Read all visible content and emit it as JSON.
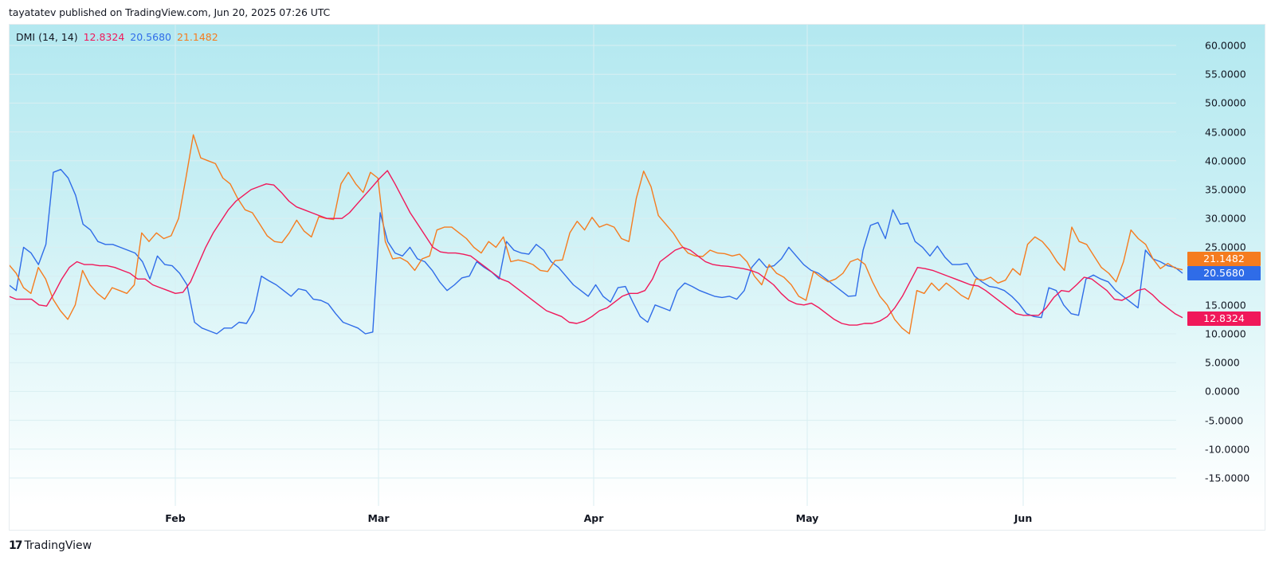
{
  "header": {
    "published_text": "tayatatev published on TradingView.com, Jun 20, 2025 07:26 UTC"
  },
  "indicator": {
    "name": "DMI (14, 14)",
    "adx_value": "12.8324",
    "plus_di_value": "20.5680",
    "minus_di_value": "21.1482"
  },
  "colors": {
    "adx": "#f0185a",
    "plus_di": "#2f6ce8",
    "minus_di": "#f57c1f",
    "background_top": "#b3e8f0",
    "background_bottom": "#ffffff",
    "grid": "#d9eef2"
  },
  "yaxis": {
    "ticks": [
      "60.0000",
      "55.0000",
      "50.0000",
      "45.0000",
      "40.0000",
      "35.0000",
      "30.0000",
      "25.0000",
      "15.0000",
      "10.0000",
      "5.0000",
      "0.0000",
      "-5.0000",
      "-10.0000",
      "-15.0000"
    ]
  },
  "badges": {
    "minus_di": "21.1482",
    "plus_di": "20.5680",
    "adx": "12.8324"
  },
  "xaxis": {
    "ticks": [
      "Feb",
      "Mar",
      "Apr",
      "May",
      "Jun"
    ]
  },
  "footer": {
    "brand": "TradingView",
    "logo_glyph": "17"
  },
  "chart_data": {
    "type": "line",
    "title": "DMI (14, 14)",
    "xlabel": "",
    "ylabel": "",
    "ylim": [
      -20,
      62
    ],
    "x_ticks": [
      "Feb",
      "Mar",
      "Apr",
      "May",
      "Jun"
    ],
    "y_ticks": [
      60,
      55,
      50,
      45,
      40,
      35,
      30,
      25,
      20,
      15,
      10,
      5,
      0,
      -5,
      -10,
      -15
    ],
    "grid": true,
    "legend_position": "top-left",
    "x_range": "approx. Jan 9 2025 – Jun 19 2025 (daily)",
    "series": [
      {
        "name": "+DI",
        "color": "#2f6ce8",
        "last_value": 20.568,
        "values": [
          18.5,
          17.5,
          25,
          24,
          22,
          25.5,
          38,
          38.5,
          37,
          34,
          29,
          28,
          26,
          25.5,
          25.5,
          25,
          24.5,
          24,
          22.5,
          19.5,
          23.5,
          22,
          21.8,
          20.5,
          18.5,
          12,
          11,
          10.5,
          10,
          11,
          11,
          12,
          11.8,
          14,
          20,
          19.2,
          18.5,
          17.5,
          16.5,
          17.8,
          17.5,
          16,
          15.8,
          15.2,
          13.5,
          12,
          11.5,
          11,
          10,
          10.3,
          31,
          26,
          24,
          23.5,
          25,
          23,
          22.5,
          21,
          19,
          17.5,
          18.5,
          19.7,
          20,
          22.5,
          21.5,
          20.7,
          19.5,
          26,
          24.5,
          24,
          23.8,
          25.5,
          24.5,
          22.5,
          21.5,
          20,
          18.5,
          17.5,
          16.5,
          18.5,
          16.5,
          15.5,
          18,
          18.2,
          15.5,
          13,
          12,
          15,
          14.5,
          14,
          17.5,
          18.8,
          18.2,
          17.5,
          17,
          16.5,
          16.3,
          16.5,
          16,
          17.5,
          21.5,
          23,
          21.5,
          21.8,
          23,
          25,
          23.5,
          22,
          21,
          20.5,
          19.5,
          18.5,
          17.5,
          16.5,
          16.6,
          24.5,
          28.8,
          29.3,
          26.5,
          31.5,
          29,
          29.2,
          26,
          25,
          23.5,
          25.2,
          23.3,
          22,
          22,
          22.2,
          20,
          19,
          18.2,
          18,
          17.5,
          16.5,
          15.2,
          13.5,
          13,
          12.8,
          18,
          17.5,
          15,
          13.5,
          13.2,
          19.5,
          20.2,
          19.5,
          19,
          17.5,
          16.5,
          15.5,
          14.5,
          24.5,
          23,
          22.5,
          21.8,
          21.5,
          20.5
        ]
      },
      {
        "name": "-DI",
        "color": "#f57c1f",
        "last_value": 21.1482,
        "values": [
          22,
          20.5,
          18,
          17,
          21.5,
          19.5,
          16,
          14,
          12.5,
          15,
          21,
          18.5,
          17,
          16,
          18,
          17.5,
          17,
          18.5,
          27.5,
          26,
          27.5,
          26.5,
          27,
          30,
          37,
          44.5,
          40.5,
          40,
          39.5,
          37,
          36,
          33.5,
          31.5,
          31,
          29,
          27,
          26,
          25.8,
          27.5,
          29.7,
          27.8,
          26.8,
          30.3,
          30,
          29.8,
          36,
          38,
          36,
          34.5,
          38,
          37,
          26,
          23,
          23.2,
          22.5,
          21,
          23,
          23.5,
          28,
          28.5,
          28.5,
          27.5,
          26.5,
          25,
          24,
          26,
          25,
          26.8,
          22.5,
          22.8,
          22.5,
          22,
          21,
          20.8,
          22.7,
          22.8,
          27.5,
          29.5,
          28,
          30.2,
          28.5,
          29,
          28.5,
          26.5,
          26,
          33.5,
          38.2,
          35.5,
          30.5,
          29,
          27.5,
          25.5,
          24,
          23.5,
          23.4,
          24.5,
          24,
          23.9,
          23.5,
          23.8,
          22.5,
          20,
          18.5,
          22,
          20.5,
          19.8,
          18.5,
          16.5,
          15.8,
          20.8,
          19.8,
          19,
          19.5,
          20.5,
          22.5,
          23,
          22,
          19,
          16.5,
          15,
          12.5,
          11,
          10,
          17.5,
          17,
          18.8,
          17.5,
          18.8,
          17.8,
          16.7,
          16,
          19.5,
          19.3,
          19.8,
          18.8,
          19.3,
          21.3,
          20.2,
          25.5,
          26.8,
          26,
          24.5,
          22.5,
          21,
          28.5,
          26,
          25.5,
          23.5,
          21.5,
          20.5,
          19,
          22.5,
          28,
          26.5,
          25.5,
          23,
          21.3,
          22.2,
          21.4,
          21.1
        ]
      },
      {
        "name": "ADX",
        "color": "#f0185a",
        "last_value": 12.8324,
        "values": [
          16.5,
          16,
          16,
          16,
          15,
          14.8,
          17,
          19.5,
          21.5,
          22.5,
          22,
          22,
          21.8,
          21.8,
          21.5,
          21,
          20.5,
          19.5,
          19.5,
          18.5,
          18,
          17.5,
          17,
          17.2,
          19,
          22,
          25,
          27.5,
          29.5,
          31.5,
          33,
          34,
          35,
          35.5,
          36,
          35.8,
          34.5,
          33,
          32,
          31.5,
          31,
          30.5,
          30,
          30,
          30,
          31,
          32.5,
          34,
          35.5,
          37,
          38.3,
          36,
          33.5,
          31,
          29,
          27,
          25,
          24.2,
          24,
          24,
          23.8,
          23.5,
          22.5,
          21.5,
          20.5,
          19.5,
          19,
          18,
          17,
          16,
          15,
          14,
          13.5,
          13,
          12,
          11.8,
          12.2,
          13,
          14,
          14.5,
          15.5,
          16.5,
          17,
          17,
          17.5,
          19.5,
          22.5,
          23.5,
          24.5,
          25,
          24.5,
          23.5,
          22.5,
          22,
          21.8,
          21.7,
          21.5,
          21.3,
          21,
          20.5,
          19.5,
          18.5,
          17,
          15.8,
          15.2,
          15,
          15.3,
          14.5,
          13.5,
          12.5,
          11.8,
          11.5,
          11.5,
          11.8,
          11.8,
          12.2,
          13,
          14.5,
          16.5,
          19,
          21.5,
          21.3,
          21,
          20.5,
          20,
          19.5,
          19,
          18.5,
          18.3,
          17.5,
          16.5,
          15.5,
          14.5,
          13.5,
          13.2,
          13.2,
          13.2,
          14.5,
          16.3,
          17.5,
          17.3,
          18.5,
          19.8,
          19.5,
          18.5,
          17.5,
          16,
          15.8,
          16.5,
          17.5,
          17.8,
          16.8,
          15.5,
          14.5,
          13.5,
          12.8
        ]
      }
    ]
  }
}
